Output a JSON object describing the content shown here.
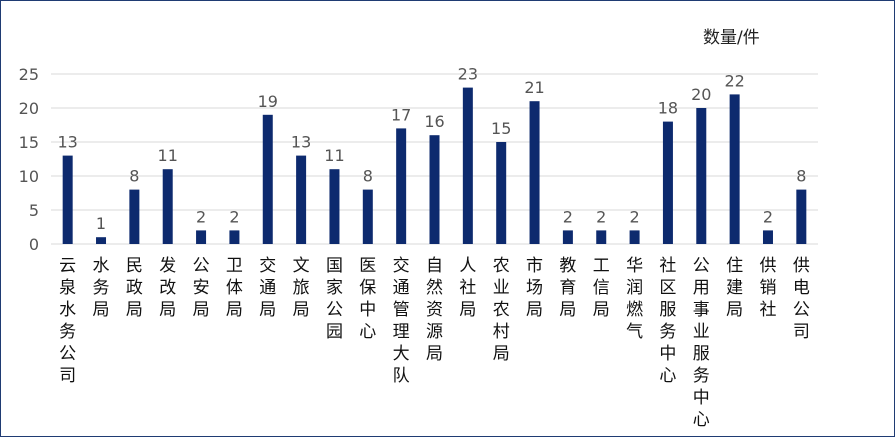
{
  "chart_data": {
    "type": "bar",
    "ylabel": "数量/件",
    "ylim": [
      0,
      25
    ],
    "yticks": [
      0,
      5,
      10,
      15,
      20,
      25
    ],
    "grid": true,
    "bar_color": "#0d2a6e",
    "categories": [
      "云泉水务公司",
      "水务局",
      "民政局",
      "发改局",
      "公安局",
      "卫体局",
      "交通局",
      "文旅局",
      "国家公园",
      "医保中心",
      "交通管理大队",
      "自然资源局",
      "人社局",
      "农业农村局",
      "市场局",
      "教育局",
      "工信局",
      "华润燃气",
      "社区服务中心",
      "公用事业服务中心",
      "住建局",
      "供销社",
      "供电公司"
    ],
    "values": [
      13,
      1,
      8,
      11,
      2,
      2,
      19,
      13,
      11,
      8,
      17,
      16,
      23,
      15,
      21,
      2,
      2,
      2,
      18,
      20,
      22,
      2,
      8
    ]
  }
}
